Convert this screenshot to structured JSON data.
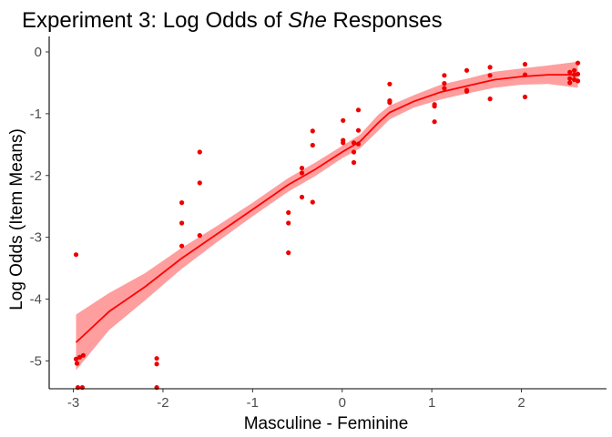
{
  "chart_data": {
    "type": "scatter",
    "title": {
      "prefix": "Experiment 3: Log Odds of ",
      "emphasis": "She",
      "suffix": " Responses"
    },
    "xlabel": "Masculine - Feminine",
    "ylabel": "Log Odds (Item Means)",
    "xlim": [
      -3.27,
      2.95
    ],
    "ylim": [
      -5.45,
      0.25
    ],
    "xticks": [
      -3,
      -2,
      -1,
      0,
      1,
      2
    ],
    "yticks": [
      0,
      -1,
      -2,
      -3,
      -4,
      -5
    ],
    "xtick_labels": [
      "-3",
      "-2",
      "-1",
      "0",
      "1",
      "2"
    ],
    "ytick_labels": [
      "0",
      "-1",
      "-2",
      "-3",
      "-4",
      "-5"
    ],
    "grid": false,
    "colors": {
      "points": "#ee0000",
      "fit_line": "#ff0000",
      "ribbon": "#ff9999"
    },
    "points": [
      {
        "x": -2.97,
        "y": -3.28
      },
      {
        "x": -2.97,
        "y": -4.97
      },
      {
        "x": -2.96,
        "y": -5.04
      },
      {
        "x": -2.93,
        "y": -4.94
      },
      {
        "x": -2.89,
        "y": -4.91
      },
      {
        "x": -2.95,
        "y": -5.43
      },
      {
        "x": -2.9,
        "y": -5.43
      },
      {
        "x": -2.07,
        "y": -4.96
      },
      {
        "x": -2.07,
        "y": -5.05
      },
      {
        "x": -2.07,
        "y": -5.43
      },
      {
        "x": -1.79,
        "y": -2.44
      },
      {
        "x": -1.79,
        "y": -2.77
      },
      {
        "x": -1.79,
        "y": -3.14
      },
      {
        "x": -1.59,
        "y": -1.62
      },
      {
        "x": -1.59,
        "y": -2.12
      },
      {
        "x": -1.59,
        "y": -2.97
      },
      {
        "x": -0.6,
        "y": -2.6
      },
      {
        "x": -0.6,
        "y": -2.77
      },
      {
        "x": -0.6,
        "y": -3.25
      },
      {
        "x": -0.45,
        "y": -1.88
      },
      {
        "x": -0.45,
        "y": -1.96
      },
      {
        "x": -0.45,
        "y": -2.35
      },
      {
        "x": -0.33,
        "y": -1.28
      },
      {
        "x": -0.33,
        "y": -1.51
      },
      {
        "x": -0.33,
        "y": -2.43
      },
      {
        "x": 0.01,
        "y": -1.11
      },
      {
        "x": 0.01,
        "y": -1.43
      },
      {
        "x": 0.01,
        "y": -1.47
      },
      {
        "x": 0.13,
        "y": -1.47
      },
      {
        "x": 0.13,
        "y": -1.62
      },
      {
        "x": 0.13,
        "y": -1.79
      },
      {
        "x": 0.18,
        "y": -0.94
      },
      {
        "x": 0.18,
        "y": -1.27
      },
      {
        "x": 0.18,
        "y": -1.49
      },
      {
        "x": 0.53,
        "y": -0.52
      },
      {
        "x": 0.53,
        "y": -0.79
      },
      {
        "x": 0.53,
        "y": -0.82
      },
      {
        "x": 1.03,
        "y": -0.85
      },
      {
        "x": 1.03,
        "y": -0.88
      },
      {
        "x": 1.03,
        "y": -1.13
      },
      {
        "x": 1.14,
        "y": -0.38
      },
      {
        "x": 1.14,
        "y": -0.51
      },
      {
        "x": 1.14,
        "y": -0.59
      },
      {
        "x": 1.39,
        "y": -0.3
      },
      {
        "x": 1.39,
        "y": -0.62
      },
      {
        "x": 1.39,
        "y": -0.64
      },
      {
        "x": 1.65,
        "y": -0.25
      },
      {
        "x": 1.65,
        "y": -0.38
      },
      {
        "x": 1.65,
        "y": -0.76
      },
      {
        "x": 2.04,
        "y": -0.2
      },
      {
        "x": 2.04,
        "y": -0.37
      },
      {
        "x": 2.04,
        "y": -0.73
      },
      {
        "x": 2.54,
        "y": -0.33
      },
      {
        "x": 2.54,
        "y": -0.43
      },
      {
        "x": 2.54,
        "y": -0.5
      },
      {
        "x": 2.59,
        "y": -0.3
      },
      {
        "x": 2.59,
        "y": -0.37
      },
      {
        "x": 2.59,
        "y": -0.45
      },
      {
        "x": 2.63,
        "y": -0.18
      },
      {
        "x": 2.63,
        "y": -0.36
      },
      {
        "x": 2.63,
        "y": -0.47
      }
    ],
    "fit": {
      "x": [
        -2.97,
        -2.6,
        -2.2,
        -1.8,
        -1.4,
        -1.0,
        -0.6,
        -0.3,
        0.0,
        0.2,
        0.4,
        0.53,
        0.8,
        1.1,
        1.4,
        1.7,
        2.0,
        2.3,
        2.63
      ],
      "y": [
        -4.7,
        -4.2,
        -3.8,
        -3.35,
        -2.95,
        -2.55,
        -2.15,
        -1.9,
        -1.62,
        -1.45,
        -1.15,
        -0.98,
        -0.8,
        -0.65,
        -0.55,
        -0.45,
        -0.4,
        -0.37,
        -0.37
      ],
      "lower": [
        -5.15,
        -4.5,
        -4.02,
        -3.52,
        -3.08,
        -2.66,
        -2.26,
        -2.01,
        -1.72,
        -1.56,
        -1.28,
        -1.09,
        -0.9,
        -0.77,
        -0.67,
        -0.58,
        -0.53,
        -0.52,
        -0.58
      ],
      "upper": [
        -4.25,
        -3.9,
        -3.58,
        -3.18,
        -2.82,
        -2.44,
        -2.04,
        -1.79,
        -1.52,
        -1.34,
        -1.02,
        -0.87,
        -0.7,
        -0.53,
        -0.43,
        -0.32,
        -0.27,
        -0.22,
        -0.16
      ]
    }
  }
}
